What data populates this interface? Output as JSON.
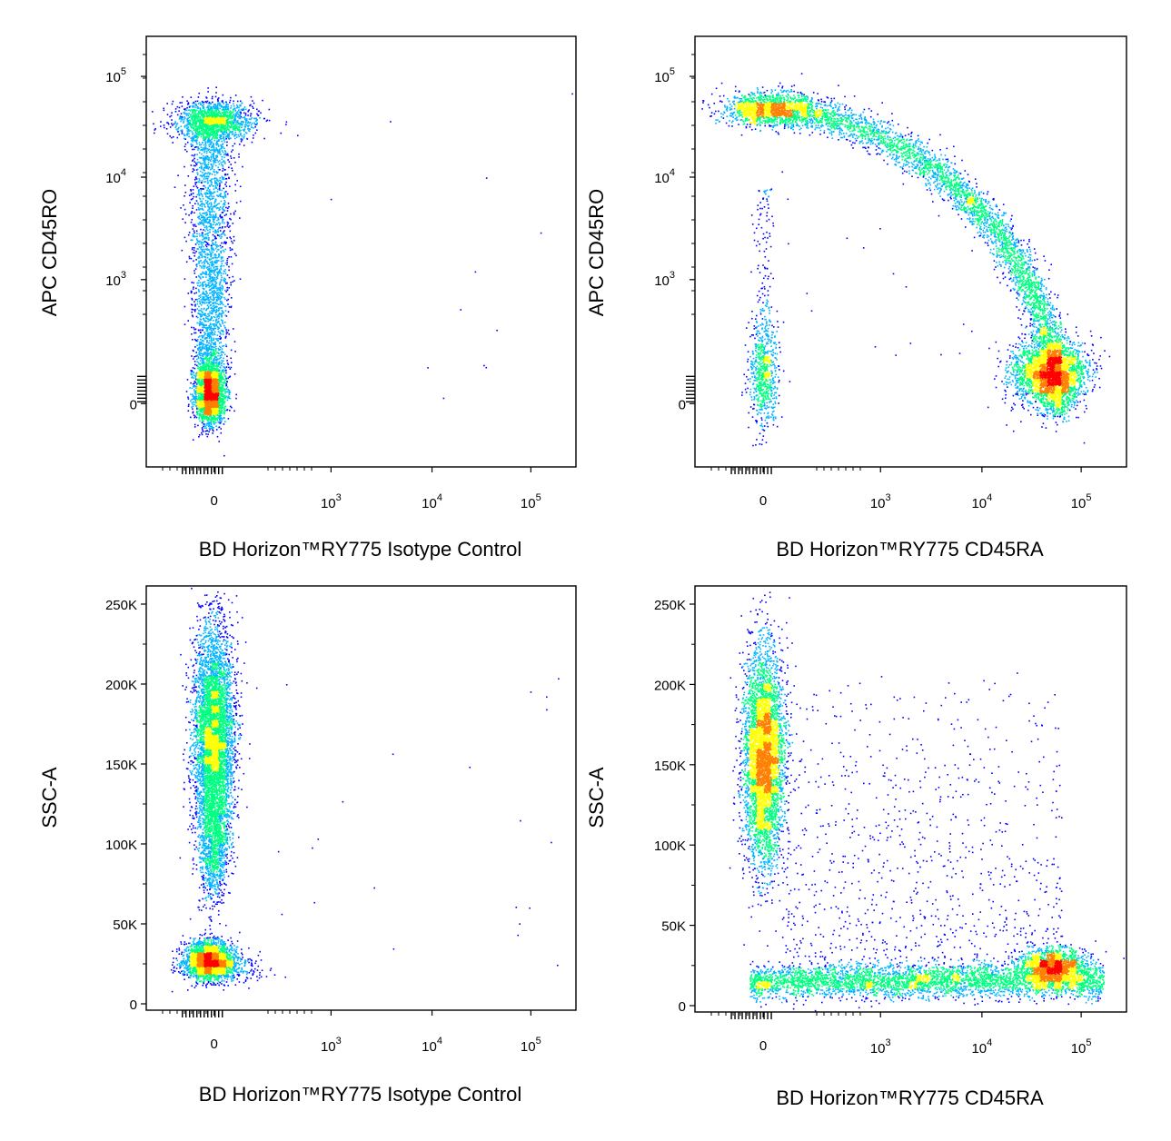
{
  "chart_data": [
    {
      "type": "scatter",
      "subtype": "flow-cytometry-density-dot-plot",
      "xlabel": "BD Horizon™RY775 Isotype Control",
      "ylabel": "APC CD45RO",
      "xscale": "biexponential",
      "yscale": "biexponential",
      "x_ticks": [
        {
          "base": "0",
          "exp": ""
        },
        {
          "base": "10",
          "exp": "3"
        },
        {
          "base": "10",
          "exp": "4"
        },
        {
          "base": "10",
          "exp": "5"
        }
      ],
      "y_ticks": [
        {
          "base": "0",
          "exp": ""
        },
        {
          "base": "10",
          "exp": "3"
        },
        {
          "base": "10",
          "exp": "4"
        },
        {
          "base": "10",
          "exp": "5"
        }
      ],
      "populations": [
        {
          "name": "",
          "x_center": 0,
          "y_center": 0,
          "spread": "low"
        },
        {
          "name": "",
          "x_center": 0,
          "y_range": [
            0,
            60000
          ],
          "shape": "vertical streak"
        },
        {
          "name": "",
          "x_center": 0,
          "y_center": 50000,
          "shape": "horizontal cap"
        }
      ]
    },
    {
      "type": "scatter",
      "subtype": "flow-cytometry-density-dot-plot",
      "xlabel": "BD Horizon™RY775 CD45RA",
      "ylabel": "APC CD45RO",
      "xscale": "biexponential",
      "yscale": "biexponential",
      "x_ticks": [
        {
          "base": "0",
          "exp": ""
        },
        {
          "base": "10",
          "exp": "3"
        },
        {
          "base": "10",
          "exp": "4"
        },
        {
          "base": "10",
          "exp": "5"
        }
      ],
      "y_ticks": [
        {
          "base": "0",
          "exp": ""
        },
        {
          "base": "10",
          "exp": "3"
        },
        {
          "base": "10",
          "exp": "4"
        },
        {
          "base": "10",
          "exp": "5"
        }
      ],
      "populations": [
        {
          "name": "",
          "x_center": 30000,
          "y_center": 0,
          "spread": "high density"
        },
        {
          "name": "",
          "x_center": 0,
          "y_center": 50000,
          "shape": "arc to CD45RA+"
        },
        {
          "name": "",
          "x_center": 0,
          "y_center": 0,
          "spread": "small"
        }
      ]
    },
    {
      "type": "scatter",
      "subtype": "flow-cytometry-density-dot-plot",
      "xlabel": "BD Horizon™RY775 Isotype Control",
      "ylabel": "SSC-A",
      "xscale": "biexponential",
      "yscale": "linear",
      "x_ticks": [
        {
          "base": "0",
          "exp": ""
        },
        {
          "base": "10",
          "exp": "3"
        },
        {
          "base": "10",
          "exp": "4"
        },
        {
          "base": "10",
          "exp": "5"
        }
      ],
      "y_ticks": [
        {
          "base": "0",
          "exp": ""
        },
        {
          "base": "50K",
          "exp": ""
        },
        {
          "base": "100K",
          "exp": ""
        },
        {
          "base": "150K",
          "exp": ""
        },
        {
          "base": "200K",
          "exp": ""
        },
        {
          "base": "250K",
          "exp": ""
        }
      ],
      "ylim": [
        0,
        250000
      ],
      "populations": [
        {
          "name": "",
          "x_center": 0,
          "y_center": 170000
        },
        {
          "name": "",
          "x_center": 0,
          "y_center": 25000
        }
      ]
    },
    {
      "type": "scatter",
      "subtype": "flow-cytometry-density-dot-plot",
      "xlabel": "BD Horizon™RY775 CD45RA",
      "ylabel": "SSC-A",
      "xscale": "biexponential",
      "yscale": "linear",
      "x_ticks": [
        {
          "base": "0",
          "exp": ""
        },
        {
          "base": "10",
          "exp": "3"
        },
        {
          "base": "10",
          "exp": "4"
        },
        {
          "base": "10",
          "exp": "5"
        }
      ],
      "y_ticks": [
        {
          "base": "0",
          "exp": ""
        },
        {
          "base": "50K",
          "exp": ""
        },
        {
          "base": "100K",
          "exp": ""
        },
        {
          "base": "150K",
          "exp": ""
        },
        {
          "base": "200K",
          "exp": ""
        },
        {
          "base": "250K",
          "exp": ""
        }
      ],
      "ylim": [
        0,
        250000
      ],
      "populations": [
        {
          "name": "",
          "x_center": 0,
          "y_center": 160000
        },
        {
          "name": "",
          "x_range": [
            0,
            60000
          ],
          "y_center": 28000,
          "shape": "horizontal band"
        },
        {
          "name": "",
          "x_center": 40000,
          "y_center": 30000
        }
      ]
    }
  ],
  "colors": {
    "density_low": "#0000ff",
    "density_mid_low": "#00b4ff",
    "density_mid": "#00ff80",
    "density_mid_high": "#ffff00",
    "density_high": "#ff8000",
    "density_peak": "#ff0000",
    "axis": "#000000"
  }
}
